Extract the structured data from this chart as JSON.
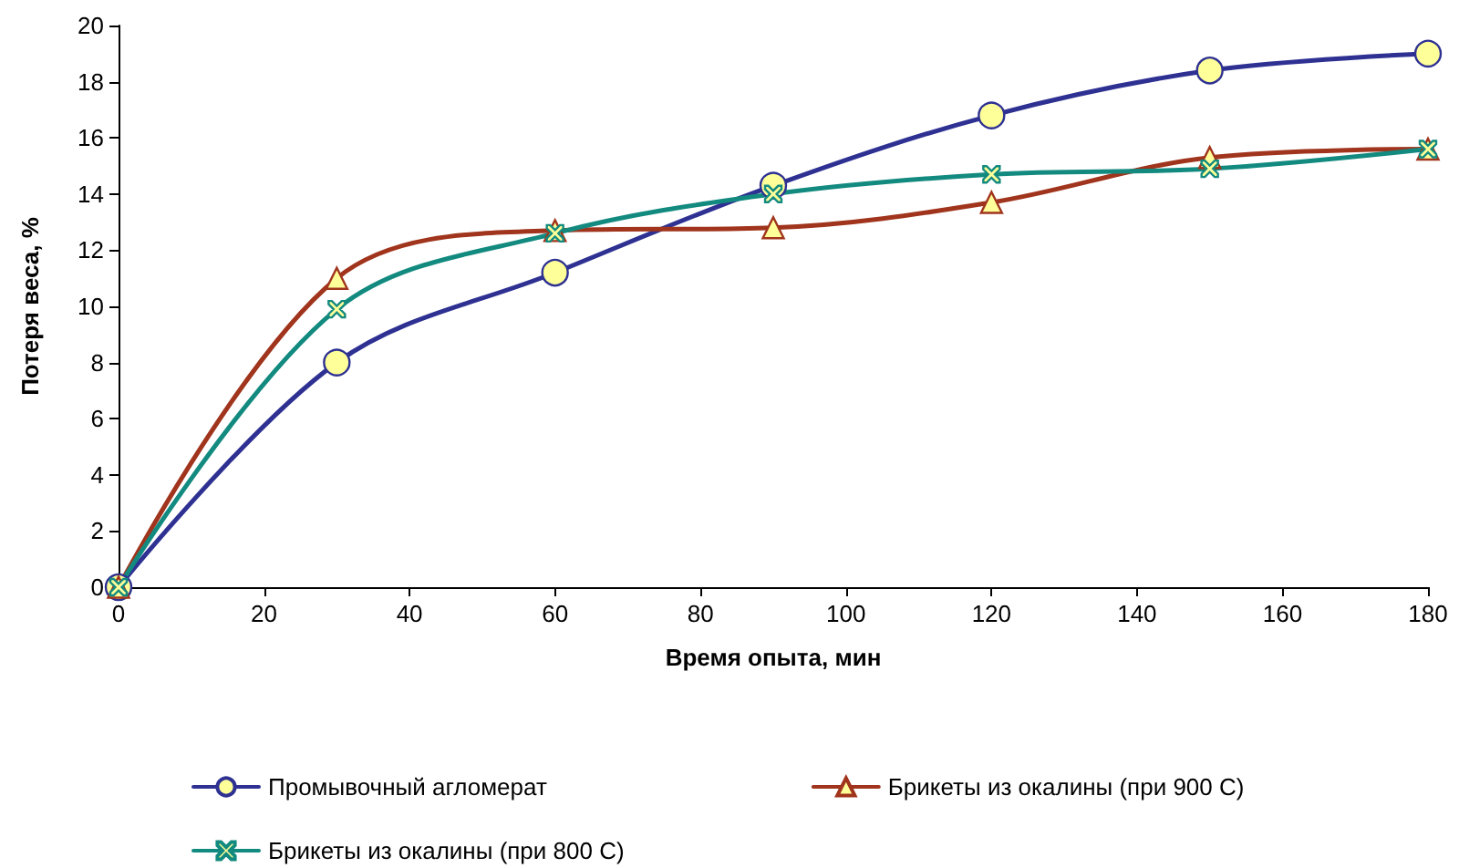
{
  "chart_data": {
    "type": "line",
    "xlabel": "Время опыта, мин",
    "ylabel": "Потеря веса, %",
    "x": [
      0,
      30,
      60,
      90,
      120,
      150,
      180
    ],
    "series": [
      {
        "name": "Промывочный агломерат",
        "color": "#2e3192",
        "marker": "circle",
        "values": [
          0,
          8,
          11.2,
          14.3,
          16.8,
          18.4,
          19.0
        ]
      },
      {
        "name": "Брикеты из окалины (при 900 С)",
        "color": "#a0341c",
        "marker": "triangle",
        "values": [
          0,
          11.0,
          12.7,
          12.8,
          13.7,
          15.3,
          15.6
        ]
      },
      {
        "name": "Брикеты из окалины (при 800 С)",
        "color": "#138a7f",
        "marker": "cross",
        "values": [
          0,
          9.9,
          12.6,
          14.0,
          14.7,
          14.9,
          15.6
        ]
      }
    ],
    "xlim": [
      0,
      180
    ],
    "xticks": [
      0,
      20,
      40,
      60,
      80,
      100,
      120,
      140,
      160,
      180
    ],
    "ylim": [
      0,
      20
    ],
    "yticks": [
      0,
      2,
      4,
      6,
      8,
      10,
      12,
      14,
      16,
      18,
      20
    ],
    "grid": false,
    "legend": "bottom",
    "line_style": "solid"
  }
}
